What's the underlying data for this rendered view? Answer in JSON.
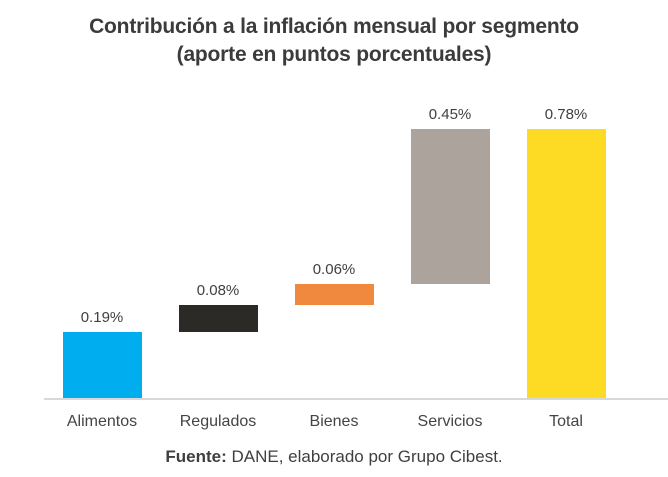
{
  "title": {
    "line1": "Contribución a la inflación mensual por segmento",
    "line2": "(aporte en puntos porcentuales)"
  },
  "footer": {
    "prefix": "Fuente:",
    "text": " DANE, elaborado por Grupo Cibest."
  },
  "colors": {
    "alimentos": "#00AEEF",
    "regulados": "#2B2A26",
    "bienes": "#F0893D",
    "servicios": "#ABA39C",
    "total": "#FDDA24",
    "axis_line": "#D8D8D8",
    "title_text": "#3B3B3B",
    "label_text": "#404040"
  },
  "chart_data": {
    "type": "bar",
    "subtype": "waterfall",
    "title": "Contribución a la inflación mensual por segmento (aporte en puntos porcentuales)",
    "xlabel": "",
    "ylabel": "",
    "ylim": [
      0,
      0.78
    ],
    "grid": false,
    "legend": false,
    "categories": [
      "Alimentos",
      "Regulados",
      "Bienes",
      "Servicios",
      "Total"
    ],
    "values": [
      0.19,
      0.08,
      0.06,
      0.45,
      0.78
    ],
    "segments": [
      {
        "category": "Alimentos",
        "value": 0.19,
        "label": "0.19%",
        "start": 0,
        "end": 0.19,
        "color": "#00AEEF",
        "role": "delta"
      },
      {
        "category": "Regulados",
        "value": 0.08,
        "label": "0.08%",
        "start": 0.19,
        "end": 0.27,
        "color": "#2B2A26",
        "role": "delta"
      },
      {
        "category": "Bienes",
        "value": 0.06,
        "label": "0.06%",
        "start": 0.27,
        "end": 0.33,
        "color": "#F0893D",
        "role": "delta"
      },
      {
        "category": "Servicios",
        "value": 0.45,
        "label": "0.45%",
        "start": 0.33,
        "end": 0.78,
        "color": "#ABA39C",
        "role": "delta"
      },
      {
        "category": "Total",
        "value": 0.78,
        "label": "0.78%",
        "start": 0,
        "end": 0.78,
        "color": "#FDDA24",
        "role": "total"
      }
    ]
  }
}
